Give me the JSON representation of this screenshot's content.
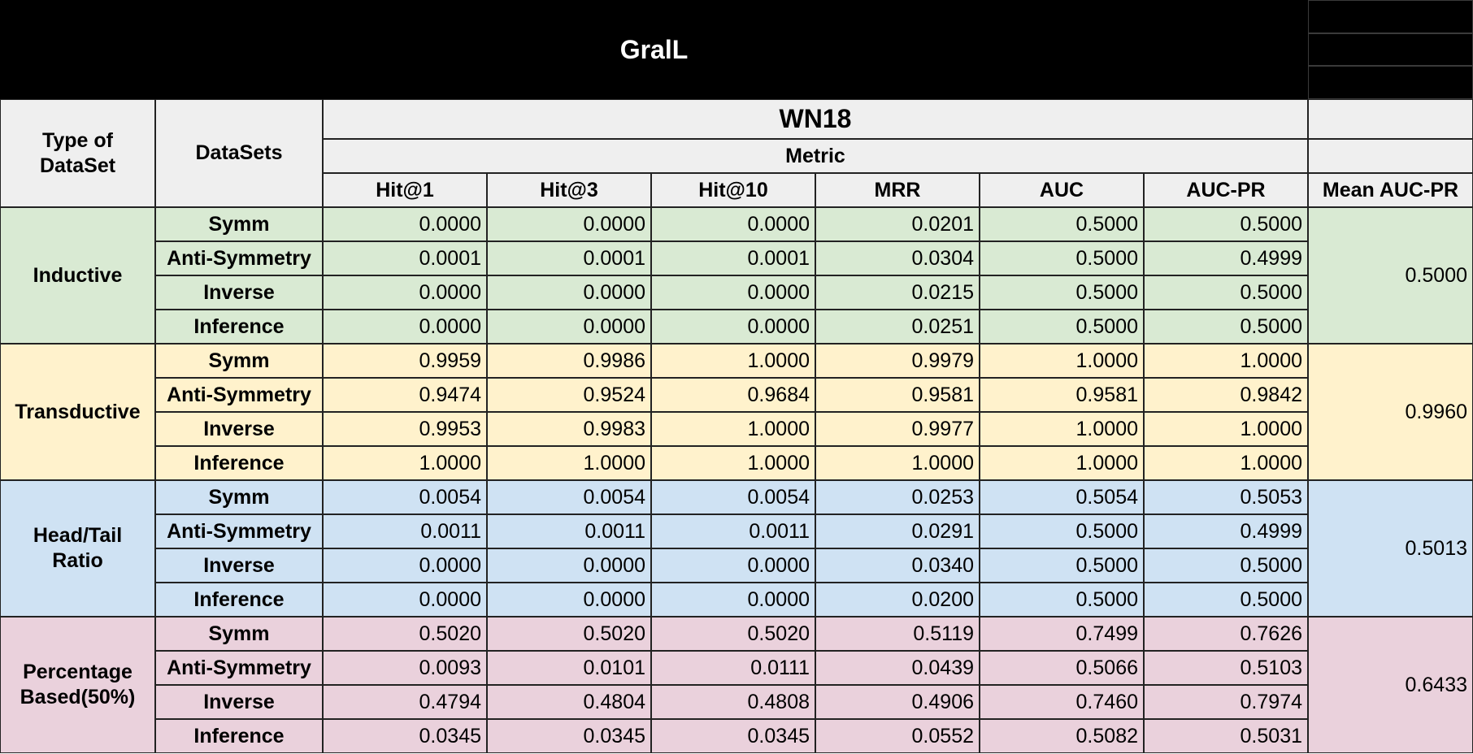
{
  "title": "GralL",
  "header": {
    "type_of_dataset": "Type of DataSet",
    "datasets": "DataSets",
    "dataset_name": "WN18",
    "metric": "Metric",
    "columns": [
      "Hit@1",
      "Hit@3",
      "Hit@10",
      "MRR",
      "AUC",
      "AUC-PR"
    ],
    "mean_label": "Mean AUC-PR"
  },
  "groups": [
    {
      "name": "Inductive",
      "color": "#d9ead3",
      "mean": "0.5000",
      "rows": [
        {
          "dataset": "Symm",
          "values": [
            "0.0000",
            "0.0000",
            "0.0000",
            "0.0201",
            "0.5000",
            "0.5000"
          ]
        },
        {
          "dataset": "Anti-Symmetry",
          "values": [
            "0.0001",
            "0.0001",
            "0.0001",
            "0.0304",
            "0.5000",
            "0.4999"
          ]
        },
        {
          "dataset": "Inverse",
          "values": [
            "0.0000",
            "0.0000",
            "0.0000",
            "0.0215",
            "0.5000",
            "0.5000"
          ]
        },
        {
          "dataset": "Inference",
          "values": [
            "0.0000",
            "0.0000",
            "0.0000",
            "0.0251",
            "0.5000",
            "0.5000"
          ]
        }
      ]
    },
    {
      "name": "Transductive",
      "color": "#fff2cc",
      "mean": "0.9960",
      "rows": [
        {
          "dataset": "Symm",
          "values": [
            "0.9959",
            "0.9986",
            "1.0000",
            "0.9979",
            "1.0000",
            "1.0000"
          ]
        },
        {
          "dataset": "Anti-Symmetry",
          "values": [
            "0.9474",
            "0.9524",
            "0.9684",
            "0.9581",
            "0.9581",
            "0.9842"
          ]
        },
        {
          "dataset": "Inverse",
          "values": [
            "0.9953",
            "0.9983",
            "1.0000",
            "0.9977",
            "1.0000",
            "1.0000"
          ]
        },
        {
          "dataset": "Inference",
          "values": [
            "1.0000",
            "1.0000",
            "1.0000",
            "1.0000",
            "1.0000",
            "1.0000"
          ]
        }
      ]
    },
    {
      "name": "Head/Tail Ratio",
      "color": "#cfe2f3",
      "mean": "0.5013",
      "rows": [
        {
          "dataset": "Symm",
          "values": [
            "0.0054",
            "0.0054",
            "0.0054",
            "0.0253",
            "0.5054",
            "0.5053"
          ]
        },
        {
          "dataset": "Anti-Symmetry",
          "values": [
            "0.0011",
            "0.0011",
            "0.0011",
            "0.0291",
            "0.5000",
            "0.4999"
          ]
        },
        {
          "dataset": "Inverse",
          "values": [
            "0.0000",
            "0.0000",
            "0.0000",
            "0.0340",
            "0.5000",
            "0.5000"
          ]
        },
        {
          "dataset": "Inference",
          "values": [
            "0.0000",
            "0.0000",
            "0.0000",
            "0.0200",
            "0.5000",
            "0.5000"
          ]
        }
      ]
    },
    {
      "name": "Percentage Based(50%)",
      "color": "#ead1dc",
      "mean": "0.6433",
      "rows": [
        {
          "dataset": "Symm",
          "values": [
            "0.5020",
            "0.5020",
            "0.5020",
            "0.5119",
            "0.7499",
            "0.7626"
          ]
        },
        {
          "dataset": "Anti-Symmetry",
          "values": [
            "0.0093",
            "0.0101",
            "0.0111",
            "0.0439",
            "0.5066",
            "0.5103"
          ]
        },
        {
          "dataset": "Inverse",
          "values": [
            "0.4794",
            "0.4804",
            "0.4808",
            "0.4906",
            "0.7460",
            "0.7974"
          ]
        },
        {
          "dataset": "Inference",
          "values": [
            "0.0345",
            "0.0345",
            "0.0345",
            "0.0552",
            "0.5082",
            "0.5031"
          ]
        }
      ]
    }
  ]
}
